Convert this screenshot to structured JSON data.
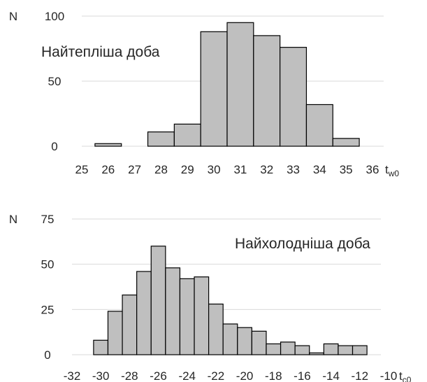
{
  "chart_data": [
    {
      "type": "bar",
      "ylabel": "N",
      "xlabel": "t",
      "xlabel_sub": "w0",
      "annotation": "Найтепліша доба",
      "ylim": [
        0,
        100
      ],
      "yticks": [
        0,
        50,
        100
      ],
      "xticks": [
        25,
        26,
        27,
        28,
        29,
        30,
        31,
        32,
        33,
        34,
        35,
        36
      ],
      "bin_width": 1,
      "bins": [
        {
          "x0": 25.5,
          "value": 2
        },
        {
          "x0": 26.5,
          "value": 0
        },
        {
          "x0": 27.5,
          "value": 11
        },
        {
          "x0": 28.5,
          "value": 17
        },
        {
          "x0": 29.5,
          "value": 88
        },
        {
          "x0": 30.5,
          "value": 95
        },
        {
          "x0": 31.5,
          "value": 85
        },
        {
          "x0": 32.5,
          "value": 76
        },
        {
          "x0": 33.5,
          "value": 32
        },
        {
          "x0": 34.5,
          "value": 6
        }
      ],
      "grid": true,
      "bar_color": "#bfbfbf"
    },
    {
      "type": "bar",
      "ylabel": "N",
      "xlabel": "t",
      "xlabel_sub": "c0",
      "annotation": "Найхолодніша доба",
      "ylim": [
        0,
        75
      ],
      "yticks": [
        0,
        25,
        50,
        75
      ],
      "xticks": [
        -32,
        -30,
        -28,
        -26,
        -24,
        -22,
        -20,
        -18,
        -16,
        -14,
        -12,
        -10
      ],
      "bin_width": 1,
      "bins": [
        {
          "x0": -30.5,
          "value": 8
        },
        {
          "x0": -29.5,
          "value": 24
        },
        {
          "x0": -28.5,
          "value": 33
        },
        {
          "x0": -27.5,
          "value": 46
        },
        {
          "x0": -26.5,
          "value": 60
        },
        {
          "x0": -25.5,
          "value": 48
        },
        {
          "x0": -24.5,
          "value": 42
        },
        {
          "x0": -23.5,
          "value": 43
        },
        {
          "x0": -22.5,
          "value": 28
        },
        {
          "x0": -21.5,
          "value": 17
        },
        {
          "x0": -20.5,
          "value": 15
        },
        {
          "x0": -19.5,
          "value": 13
        },
        {
          "x0": -18.5,
          "value": 6
        },
        {
          "x0": -17.5,
          "value": 7
        },
        {
          "x0": -16.5,
          "value": 5
        },
        {
          "x0": -15.5,
          "value": 1
        },
        {
          "x0": -14.5,
          "value": 6
        },
        {
          "x0": -13.5,
          "value": 5
        },
        {
          "x0": -12.5,
          "value": 5
        }
      ],
      "grid": true,
      "bar_color": "#bfbfbf"
    }
  ]
}
